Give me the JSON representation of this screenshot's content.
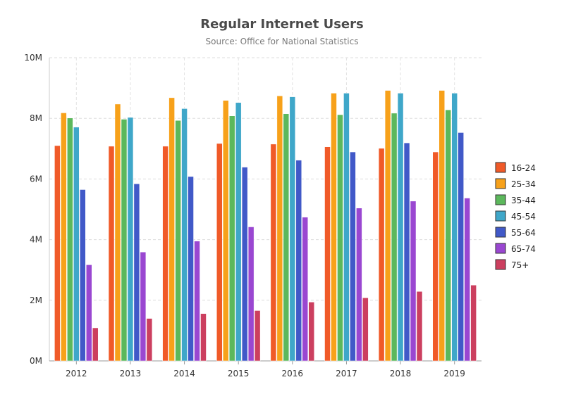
{
  "chart_data": {
    "type": "bar",
    "title": "Regular Internet Users",
    "subtitle": "Source: Office for National Statistics",
    "xlabel": "",
    "ylabel": "",
    "categories": [
      "2012",
      "2013",
      "2014",
      "2015",
      "2016",
      "2017",
      "2018",
      "2019"
    ],
    "ylim": [
      0,
      10000000
    ],
    "yticks": [
      {
        "value": 0,
        "label": "0M"
      },
      {
        "value": 2000000,
        "label": "2M"
      },
      {
        "value": 4000000,
        "label": "4M"
      },
      {
        "value": 6000000,
        "label": "6M"
      },
      {
        "value": 8000000,
        "label": "8M"
      },
      {
        "value": 10000000,
        "label": "10M"
      }
    ],
    "grid": true,
    "legend_position": "right",
    "series": [
      {
        "name": "16-24",
        "color": "#f05a28",
        "values": [
          7100000,
          7080000,
          7080000,
          7170000,
          7150000,
          7060000,
          7010000,
          6890000
        ]
      },
      {
        "name": "25-34",
        "color": "#f7a11a",
        "values": [
          8180000,
          8470000,
          8680000,
          8590000,
          8740000,
          8830000,
          8920000,
          8920000
        ]
      },
      {
        "name": "35-44",
        "color": "#5cb85c",
        "values": [
          8010000,
          7970000,
          7930000,
          8080000,
          8150000,
          8120000,
          8170000,
          8280000
        ]
      },
      {
        "name": "45-54",
        "color": "#3fa7c9",
        "values": [
          7710000,
          8030000,
          8320000,
          8520000,
          8710000,
          8830000,
          8830000,
          8830000
        ]
      },
      {
        "name": "55-64",
        "color": "#4159c8",
        "values": [
          5650000,
          5840000,
          6080000,
          6390000,
          6620000,
          6890000,
          7190000,
          7530000
        ]
      },
      {
        "name": "65-74",
        "color": "#9a47d1",
        "values": [
          3170000,
          3590000,
          3950000,
          4420000,
          4740000,
          5040000,
          5270000,
          5370000
        ]
      },
      {
        "name": "75+",
        "color": "#cc3f5f",
        "values": [
          1090000,
          1400000,
          1560000,
          1660000,
          1940000,
          2080000,
          2290000,
          2500000
        ]
      }
    ]
  }
}
